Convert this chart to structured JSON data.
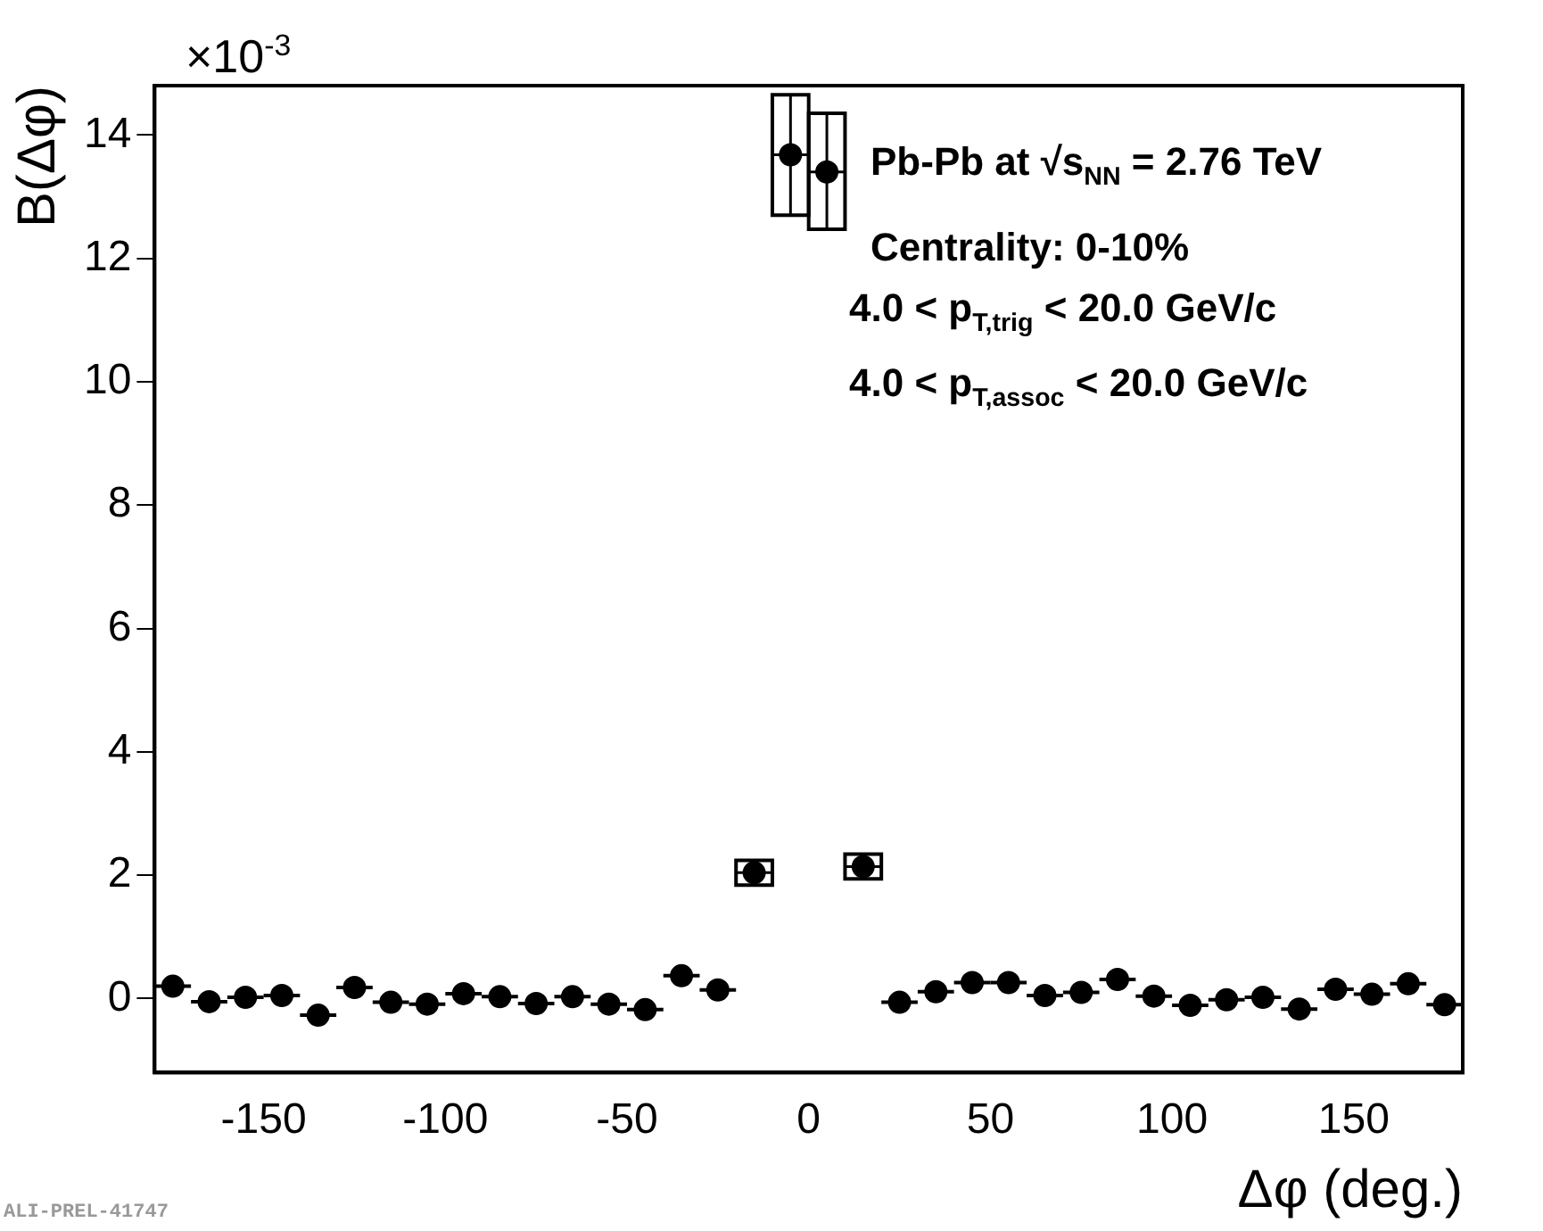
{
  "chart_data": {
    "type": "scatter",
    "ylabel": "B(Δφ)",
    "xlabel": "Δφ (deg.)",
    "annotations": [
      "×10$^{-3}$",
      "Pb-Pb at √s$_{NN}$ = 2.76 TeV",
      "Centrality: 0-10%",
      "4.0 < p$_{T,trig}$ < 20.0 GeV/c",
      "4.0 < p$_{T,assoc}$ < 20.0 GeV/c",
      "ALI-PREL-41747"
    ],
    "xlim": [
      -180,
      180
    ],
    "xticks": [
      -150,
      -100,
      -50,
      0,
      50,
      100,
      150
    ],
    "ylim": [
      -1.2,
      14.8
    ],
    "yticks": [
      0,
      2,
      4,
      6,
      8,
      10,
      12,
      14
    ],
    "grid": false,
    "legend": false,
    "marker": "circle",
    "series": [
      {
        "color": "#000000",
        "x": [
          -175,
          -165,
          -155,
          -145,
          -135,
          -125,
          -115,
          -105,
          -95,
          -85,
          -75,
          -65,
          -55,
          -45,
          -35,
          -25,
          -15,
          -5,
          5,
          15,
          25,
          35,
          45,
          55,
          65,
          75,
          85,
          95,
          105,
          115,
          125,
          135,
          145,
          155,
          165,
          175
        ],
        "values": [
          0.2,
          -0.05,
          0.02,
          0.05,
          -0.27,
          0.18,
          -0.06,
          -0.09,
          0.08,
          0.03,
          -0.08,
          0.03,
          -0.09,
          -0.18,
          0.37,
          0.14,
          2.04,
          13.68,
          13.4,
          2.14,
          -0.06,
          0.11,
          0.26,
          0.26,
          0.05,
          0.1,
          0.31,
          0.04,
          -0.11,
          -0.02,
          0.02,
          -0.17,
          0.15,
          0.07,
          0.24,
          -0.1
        ],
        "errors": [
          null,
          null,
          null,
          null,
          null,
          null,
          null,
          null,
          null,
          null,
          null,
          null,
          null,
          null,
          null,
          null,
          0.2,
          [
            12.7,
            14.65
          ],
          [
            12.47,
            14.35
          ],
          0.2,
          null,
          null,
          null,
          null,
          null,
          null,
          null,
          null,
          null,
          null,
          null,
          null,
          null,
          null,
          null,
          null
        ],
        "xerrors": [
          5,
          5,
          5,
          5,
          5,
          5,
          5,
          5,
          5,
          5,
          5,
          5,
          5,
          5,
          5,
          5,
          5,
          5,
          5,
          5,
          5,
          5,
          5,
          5,
          5,
          5,
          5,
          5,
          5,
          5,
          5,
          5,
          5,
          5,
          5,
          5
        ]
      }
    ]
  }
}
